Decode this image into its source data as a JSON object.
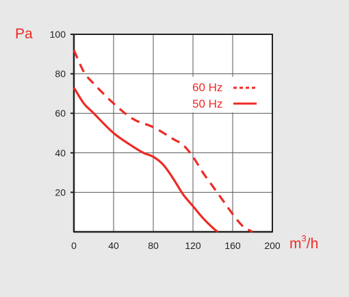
{
  "chart_data": {
    "type": "line",
    "title": "",
    "ylabel": "Pa",
    "xlabel": "m³/h",
    "xlabel_base": "m",
    "xlabel_sup": "3",
    "xlabel_tail": "/h",
    "xlim": [
      0,
      200
    ],
    "ylim": [
      0,
      100
    ],
    "x_ticks": [
      "0",
      "40",
      "80",
      "120",
      "160",
      "200"
    ],
    "y_ticks": [
      "20",
      "40",
      "60",
      "80",
      "100"
    ],
    "grid": true,
    "legend_position": "top-right",
    "series": [
      {
        "name": "60 Hz",
        "line_style": "dashed",
        "x": [
          0,
          10,
          20,
          40,
          60,
          80,
          100,
          110,
          120,
          130,
          140,
          150,
          160,
          170,
          180
        ],
        "y": [
          92,
          81,
          75,
          65,
          57,
          53,
          47,
          44,
          38,
          30,
          23,
          16,
          9,
          3,
          0
        ]
      },
      {
        "name": "50 Hz",
        "line_style": "solid",
        "x": [
          0,
          10,
          20,
          40,
          60,
          70,
          80,
          90,
          100,
          110,
          120,
          130,
          140,
          145
        ],
        "y": [
          73,
          65,
          60,
          50,
          43,
          40,
          38,
          34,
          27,
          19,
          13,
          7,
          2,
          0
        ]
      }
    ]
  },
  "colors": {
    "accent": "#ee2a24",
    "axis": "#222222",
    "grid": "#555555",
    "plot_bg": "#ffffff",
    "page_bg": "#e8e8e8"
  }
}
